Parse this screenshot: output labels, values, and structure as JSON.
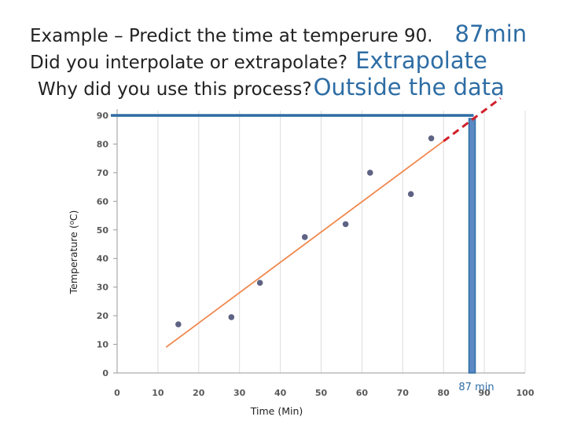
{
  "slide": {
    "line1_question": "Example – Predict the time at temperure 90.",
    "line1_answer": "87min",
    "line2_question": "Did you interpolate or extrapolate?",
    "line2_answer": "Extrapolate",
    "line3_question": "Why did you use this process?",
    "line3_answer": "Outside the data"
  },
  "colors": {
    "points": "#5e6384",
    "trendline": "#f0884e",
    "marker": "#2e6da4",
    "marker_fill": "#5b89c4",
    "extrapolation": "#d0202a",
    "grid": "#dcdcdc"
  },
  "chart_data": {
    "type": "scatter",
    "xlabel": "Time (Min)",
    "ylabel": "Temperature (⁰C)",
    "xlim": [
      0,
      100
    ],
    "ylim": [
      0,
      90
    ],
    "xticks": [
      0,
      10,
      20,
      30,
      40,
      50,
      60,
      70,
      80,
      90,
      100
    ],
    "yticks": [
      0,
      10,
      20,
      30,
      40,
      50,
      60,
      70,
      80,
      90
    ],
    "grid": "vertical",
    "points": [
      {
        "x": 15,
        "y": 17
      },
      {
        "x": 28,
        "y": 19.5
      },
      {
        "x": 35,
        "y": 31.5
      },
      {
        "x": 46,
        "y": 47.5
      },
      {
        "x": 56,
        "y": 52
      },
      {
        "x": 62,
        "y": 70
      },
      {
        "x": 72,
        "y": 62.5
      },
      {
        "x": 77,
        "y": 82
      }
    ],
    "trendline": {
      "x_start": 12,
      "y_start": 9,
      "x_end": 80,
      "y_end": 81
    },
    "extrapolation": {
      "x_start": 80,
      "y_start": 81,
      "x_end": 94,
      "y_end": 96
    },
    "reference_y": 90,
    "reference_x": 87,
    "annotation": "87 min"
  }
}
